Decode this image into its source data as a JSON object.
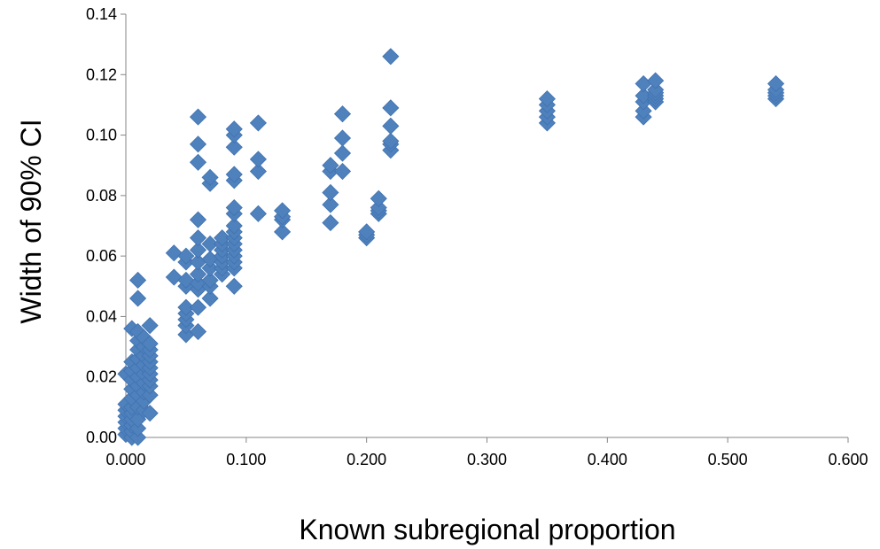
{
  "chart_data": {
    "type": "scatter",
    "title": "",
    "xlabel": "Known subregional proportion",
    "ylabel": "Width of 90% CI",
    "xlim": [
      0,
      0.6
    ],
    "ylim": [
      0,
      0.14
    ],
    "x_ticks": [
      "0.000",
      "0.100",
      "0.200",
      "0.300",
      "0.400",
      "0.500",
      "0.600"
    ],
    "y_ticks": [
      "0.00",
      "0.02",
      "0.04",
      "0.06",
      "0.08",
      "0.10",
      "0.12",
      "0.14"
    ],
    "grid": false,
    "legend": "none",
    "marker": "diamond",
    "color": "#4F81BD",
    "series": [
      {
        "points": [
          [
            0.0,
            0.001
          ],
          [
            0.0,
            0.003
          ],
          [
            0.0,
            0.005
          ],
          [
            0.0,
            0.007
          ],
          [
            0.0,
            0.009
          ],
          [
            0.0,
            0.011
          ],
          [
            0.0,
            0.021
          ],
          [
            0.005,
            0.0
          ],
          [
            0.005,
            0.002
          ],
          [
            0.005,
            0.004
          ],
          [
            0.005,
            0.006
          ],
          [
            0.005,
            0.008
          ],
          [
            0.005,
            0.01
          ],
          [
            0.005,
            0.013
          ],
          [
            0.005,
            0.016
          ],
          [
            0.005,
            0.019
          ],
          [
            0.005,
            0.022
          ],
          [
            0.005,
            0.025
          ],
          [
            0.005,
            0.036
          ],
          [
            0.01,
            0.0
          ],
          [
            0.01,
            0.003
          ],
          [
            0.01,
            0.006
          ],
          [
            0.01,
            0.01
          ],
          [
            0.01,
            0.014
          ],
          [
            0.01,
            0.017
          ],
          [
            0.01,
            0.02
          ],
          [
            0.01,
            0.023
          ],
          [
            0.01,
            0.026
          ],
          [
            0.01,
            0.029
          ],
          [
            0.01,
            0.032
          ],
          [
            0.01,
            0.035
          ],
          [
            0.01,
            0.046
          ],
          [
            0.01,
            0.052
          ],
          [
            0.015,
            0.009
          ],
          [
            0.015,
            0.012
          ],
          [
            0.015,
            0.015
          ],
          [
            0.015,
            0.018
          ],
          [
            0.015,
            0.021
          ],
          [
            0.015,
            0.024
          ],
          [
            0.015,
            0.027
          ],
          [
            0.015,
            0.03
          ],
          [
            0.015,
            0.033
          ],
          [
            0.02,
            0.008
          ],
          [
            0.02,
            0.014
          ],
          [
            0.02,
            0.017
          ],
          [
            0.02,
            0.019
          ],
          [
            0.02,
            0.021
          ],
          [
            0.02,
            0.023
          ],
          [
            0.02,
            0.025
          ],
          [
            0.02,
            0.027
          ],
          [
            0.02,
            0.029
          ],
          [
            0.02,
            0.031
          ],
          [
            0.02,
            0.037
          ],
          [
            0.04,
            0.053
          ],
          [
            0.04,
            0.061
          ],
          [
            0.05,
            0.034
          ],
          [
            0.05,
            0.037
          ],
          [
            0.05,
            0.039
          ],
          [
            0.05,
            0.041
          ],
          [
            0.05,
            0.043
          ],
          [
            0.05,
            0.05
          ],
          [
            0.05,
            0.052
          ],
          [
            0.05,
            0.058
          ],
          [
            0.05,
            0.06
          ],
          [
            0.06,
            0.035
          ],
          [
            0.06,
            0.043
          ],
          [
            0.06,
            0.049
          ],
          [
            0.06,
            0.051
          ],
          [
            0.06,
            0.054
          ],
          [
            0.06,
            0.058
          ],
          [
            0.06,
            0.062
          ],
          [
            0.06,
            0.066
          ],
          [
            0.06,
            0.072
          ],
          [
            0.06,
            0.091
          ],
          [
            0.06,
            0.097
          ],
          [
            0.06,
            0.106
          ],
          [
            0.07,
            0.046
          ],
          [
            0.07,
            0.05
          ],
          [
            0.07,
            0.052
          ],
          [
            0.07,
            0.056
          ],
          [
            0.07,
            0.059
          ],
          [
            0.07,
            0.064
          ],
          [
            0.07,
            0.084
          ],
          [
            0.07,
            0.086
          ],
          [
            0.08,
            0.054
          ],
          [
            0.08,
            0.056
          ],
          [
            0.08,
            0.058
          ],
          [
            0.08,
            0.06
          ],
          [
            0.08,
            0.062
          ],
          [
            0.08,
            0.064
          ],
          [
            0.08,
            0.066
          ],
          [
            0.09,
            0.05
          ],
          [
            0.09,
            0.056
          ],
          [
            0.09,
            0.058
          ],
          [
            0.09,
            0.06
          ],
          [
            0.09,
            0.062
          ],
          [
            0.09,
            0.064
          ],
          [
            0.09,
            0.066
          ],
          [
            0.09,
            0.068
          ],
          [
            0.09,
            0.07
          ],
          [
            0.09,
            0.074
          ],
          [
            0.09,
            0.076
          ],
          [
            0.09,
            0.085
          ],
          [
            0.09,
            0.087
          ],
          [
            0.09,
            0.096
          ],
          [
            0.09,
            0.1
          ],
          [
            0.09,
            0.102
          ],
          [
            0.11,
            0.074
          ],
          [
            0.11,
            0.088
          ],
          [
            0.11,
            0.092
          ],
          [
            0.11,
            0.104
          ],
          [
            0.13,
            0.068
          ],
          [
            0.13,
            0.072
          ],
          [
            0.13,
            0.073
          ],
          [
            0.13,
            0.075
          ],
          [
            0.17,
            0.071
          ],
          [
            0.17,
            0.077
          ],
          [
            0.17,
            0.081
          ],
          [
            0.17,
            0.088
          ],
          [
            0.17,
            0.09
          ],
          [
            0.18,
            0.088
          ],
          [
            0.18,
            0.094
          ],
          [
            0.18,
            0.099
          ],
          [
            0.18,
            0.107
          ],
          [
            0.2,
            0.066
          ],
          [
            0.2,
            0.067
          ],
          [
            0.2,
            0.068
          ],
          [
            0.21,
            0.074
          ],
          [
            0.21,
            0.075
          ],
          [
            0.21,
            0.076
          ],
          [
            0.21,
            0.079
          ],
          [
            0.22,
            0.095
          ],
          [
            0.22,
            0.097
          ],
          [
            0.22,
            0.098
          ],
          [
            0.22,
            0.103
          ],
          [
            0.22,
            0.109
          ],
          [
            0.22,
            0.126
          ],
          [
            0.35,
            0.104
          ],
          [
            0.35,
            0.106
          ],
          [
            0.35,
            0.108
          ],
          [
            0.35,
            0.11
          ],
          [
            0.35,
            0.112
          ],
          [
            0.43,
            0.106
          ],
          [
            0.43,
            0.108
          ],
          [
            0.43,
            0.111
          ],
          [
            0.43,
            0.113
          ],
          [
            0.43,
            0.117
          ],
          [
            0.44,
            0.111
          ],
          [
            0.44,
            0.112
          ],
          [
            0.44,
            0.113
          ],
          [
            0.44,
            0.114
          ],
          [
            0.44,
            0.115
          ],
          [
            0.44,
            0.118
          ],
          [
            0.54,
            0.112
          ],
          [
            0.54,
            0.113
          ],
          [
            0.54,
            0.114
          ],
          [
            0.54,
            0.115
          ],
          [
            0.54,
            0.117
          ]
        ]
      }
    ]
  }
}
